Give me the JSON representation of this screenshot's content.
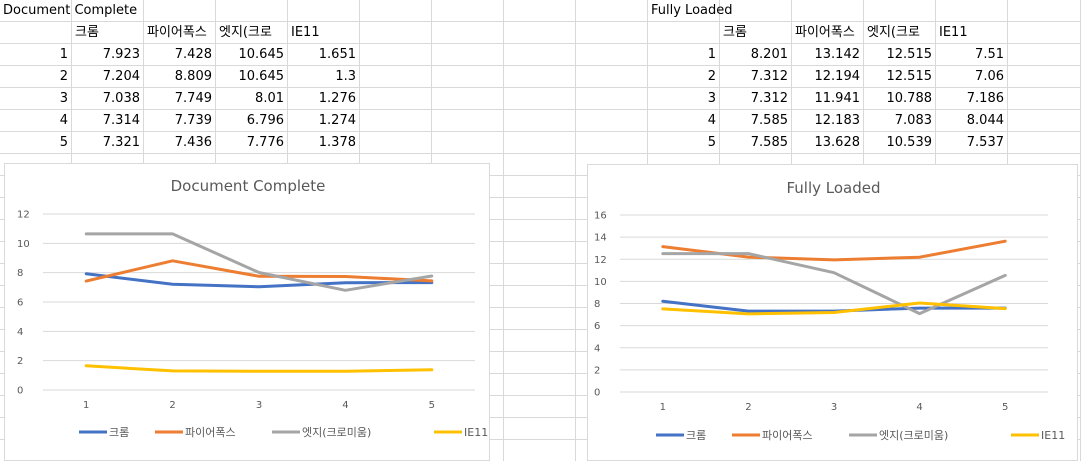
{
  "tables": [
    {
      "title": "Document Complete",
      "headers": [
        "크롬",
        "파이어폭스",
        "엣지(크로미움)",
        "IE11"
      ],
      "header_display": [
        "크롬",
        "파이어폭스",
        "엣지(크로",
        "IE11"
      ],
      "rows": [
        {
          "label": "1",
          "values": [
            "7.923",
            "7.428",
            "10.645",
            "1.651"
          ]
        },
        {
          "label": "2",
          "values": [
            "7.204",
            "8.809",
            "10.645",
            "1.3"
          ]
        },
        {
          "label": "3",
          "values": [
            "7.038",
            "7.749",
            "8.01",
            "1.276"
          ]
        },
        {
          "label": "4",
          "values": [
            "7.314",
            "7.739",
            "6.796",
            "1.274"
          ]
        },
        {
          "label": "5",
          "values": [
            "7.321",
            "7.436",
            "7.776",
            "1.378"
          ]
        }
      ]
    },
    {
      "title": "Fully Loaded",
      "headers": [
        "크롬",
        "파이어폭스",
        "엣지(크로미움)",
        "IE11"
      ],
      "header_display": [
        "크롬",
        "파이어폭스",
        "엣지(크로",
        "IE11"
      ],
      "rows": [
        {
          "label": "1",
          "values": [
            "8.201",
            "13.142",
            "12.515",
            "7.51"
          ]
        },
        {
          "label": "2",
          "values": [
            "7.312",
            "12.194",
            "12.515",
            "7.06"
          ]
        },
        {
          "label": "3",
          "values": [
            "7.312",
            "11.941",
            "10.788",
            "7.186"
          ]
        },
        {
          "label": "4",
          "values": [
            "7.585",
            "12.183",
            "7.083",
            "8.044"
          ]
        },
        {
          "label": "5",
          "values": [
            "7.585",
            "13.628",
            "10.539",
            "7.537"
          ]
        }
      ]
    }
  ],
  "colors": {
    "크롬": "#4472c4",
    "파이어폭스": "#ed7d31",
    "엣지(크로미움)": "#a5a5a5",
    "IE11": "#ffc000",
    "gridline": "#d9d9d9"
  },
  "chart_data": [
    {
      "type": "line",
      "title": "Document Complete",
      "x": [
        1,
        2,
        3,
        4,
        5
      ],
      "ylim": [
        0,
        12
      ],
      "yticks": [
        0,
        2,
        4,
        6,
        8,
        10,
        12
      ],
      "grid": true,
      "legend": "bottom",
      "series": [
        {
          "name": "크롬",
          "values": [
            7.923,
            7.204,
            7.038,
            7.314,
            7.321
          ]
        },
        {
          "name": "파이어폭스",
          "values": [
            7.428,
            8.809,
            7.749,
            7.739,
            7.436
          ]
        },
        {
          "name": "엣지(크로미움)",
          "values": [
            10.645,
            10.645,
            8.01,
            6.796,
            7.776
          ]
        },
        {
          "name": "IE11",
          "values": [
            1.651,
            1.3,
            1.276,
            1.274,
            1.378
          ]
        }
      ]
    },
    {
      "type": "line",
      "title": "Fully Loaded",
      "x": [
        1,
        2,
        3,
        4,
        5
      ],
      "ylim": [
        0,
        16
      ],
      "yticks": [
        0,
        2,
        4,
        6,
        8,
        10,
        12,
        14,
        16
      ],
      "grid": true,
      "legend": "bottom",
      "series": [
        {
          "name": "크롬",
          "values": [
            8.201,
            7.312,
            7.312,
            7.585,
            7.585
          ]
        },
        {
          "name": "파이어폭스",
          "values": [
            13.142,
            12.194,
            11.941,
            12.183,
            13.628
          ]
        },
        {
          "name": "엣지(크로미움)",
          "values": [
            12.515,
            12.515,
            10.788,
            7.083,
            10.539
          ]
        },
        {
          "name": "IE11",
          "values": [
            7.51,
            7.06,
            7.186,
            8.044,
            7.537
          ]
        }
      ]
    }
  ]
}
